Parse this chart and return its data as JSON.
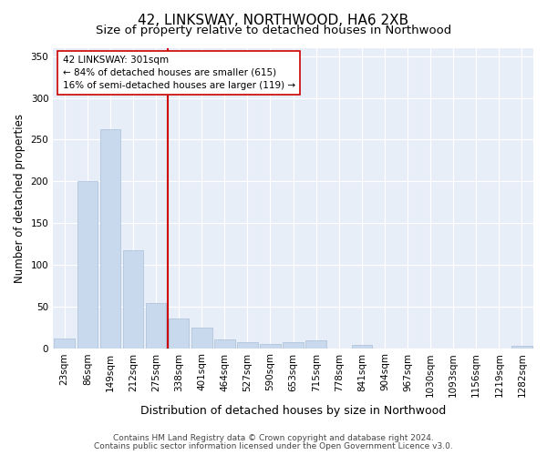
{
  "title1": "42, LINKSWAY, NORTHWOOD, HA6 2XB",
  "title2": "Size of property relative to detached houses in Northwood",
  "xlabel": "Distribution of detached houses by size in Northwood",
  "ylabel": "Number of detached properties",
  "categories": [
    "23sqm",
    "86sqm",
    "149sqm",
    "212sqm",
    "275sqm",
    "338sqm",
    "401sqm",
    "464sqm",
    "527sqm",
    "590sqm",
    "653sqm",
    "715sqm",
    "778sqm",
    "841sqm",
    "904sqm",
    "967sqm",
    "1030sqm",
    "1093sqm",
    "1156sqm",
    "1219sqm",
    "1282sqm"
  ],
  "values": [
    12,
    200,
    262,
    117,
    54,
    36,
    25,
    10,
    7,
    5,
    7,
    9,
    0,
    4,
    0,
    0,
    0,
    0,
    0,
    0,
    3
  ],
  "bar_color": "#c8d9ee",
  "bar_edge_color": "#a8bfd8",
  "vline_color": "#cc0000",
  "annotation_text": "42 LINKSWAY: 301sqm\n← 84% of detached houses are smaller (615)\n16% of semi-detached houses are larger (119) →",
  "annotation_box_color": "#ffffff",
  "annotation_box_edge": "#cc0000",
  "ylim": [
    0,
    360
  ],
  "yticks": [
    0,
    50,
    100,
    150,
    200,
    250,
    300,
    350
  ],
  "background_color": "#e8eef8",
  "footer1": "Contains HM Land Registry data © Crown copyright and database right 2024.",
  "footer2": "Contains public sector information licensed under the Open Government Licence v3.0.",
  "title1_fontsize": 11,
  "title2_fontsize": 9.5,
  "xlabel_fontsize": 9,
  "ylabel_fontsize": 8.5,
  "tick_fontsize": 7.5,
  "footer_fontsize": 6.5,
  "annotation_fontsize": 7.5
}
